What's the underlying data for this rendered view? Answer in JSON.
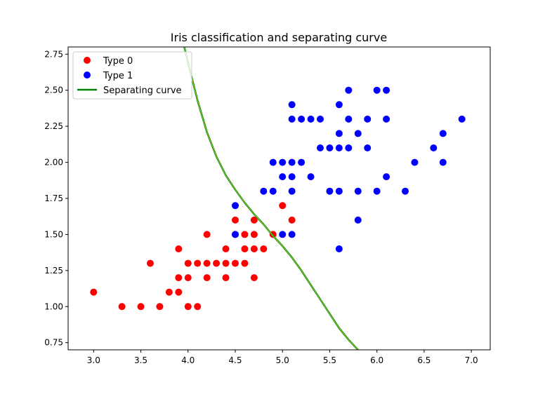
{
  "chart_data": {
    "type": "scatter",
    "title": "Iris classification and separating curve",
    "xlabel": "",
    "ylabel": "",
    "xlim": [
      2.73,
      7.2
    ],
    "ylim": [
      0.7,
      2.8
    ],
    "xticks": [
      "3.0",
      "3.5",
      "4.0",
      "4.5",
      "5.0",
      "5.5",
      "6.0",
      "6.5",
      "7.0"
    ],
    "yticks": [
      "0.75",
      "1.00",
      "1.25",
      "1.50",
      "1.75",
      "2.00",
      "2.25",
      "2.50",
      "2.75"
    ],
    "legend_position": "top-left",
    "series": [
      {
        "name": "Type 0",
        "kind": "scatter",
        "color": "#ff0000",
        "points": [
          [
            3.0,
            1.1
          ],
          [
            3.3,
            1.0
          ],
          [
            3.5,
            1.0
          ],
          [
            3.6,
            1.3
          ],
          [
            3.7,
            1.0
          ],
          [
            3.8,
            1.1
          ],
          [
            3.9,
            1.1
          ],
          [
            3.9,
            1.2
          ],
          [
            3.9,
            1.4
          ],
          [
            4.0,
            1.0
          ],
          [
            4.0,
            1.2
          ],
          [
            4.0,
            1.3
          ],
          [
            4.1,
            1.0
          ],
          [
            4.1,
            1.3
          ],
          [
            4.2,
            1.2
          ],
          [
            4.2,
            1.3
          ],
          [
            4.2,
            1.5
          ],
          [
            4.3,
            1.3
          ],
          [
            4.4,
            1.2
          ],
          [
            4.4,
            1.3
          ],
          [
            4.4,
            1.4
          ],
          [
            4.5,
            1.3
          ],
          [
            4.5,
            1.5
          ],
          [
            4.5,
            1.6
          ],
          [
            4.6,
            1.3
          ],
          [
            4.6,
            1.4
          ],
          [
            4.6,
            1.5
          ],
          [
            4.7,
            1.2
          ],
          [
            4.7,
            1.4
          ],
          [
            4.7,
            1.5
          ],
          [
            4.7,
            1.6
          ],
          [
            4.8,
            1.4
          ],
          [
            4.9,
            1.5
          ],
          [
            5.0,
            1.7
          ],
          [
            5.1,
            1.6
          ]
        ]
      },
      {
        "name": "Type 1",
        "kind": "scatter",
        "color": "#0000ff",
        "points": [
          [
            4.5,
            1.7
          ],
          [
            4.5,
            1.5
          ],
          [
            4.8,
            1.8
          ],
          [
            4.9,
            1.8
          ],
          [
            4.9,
            2.0
          ],
          [
            5.0,
            1.5
          ],
          [
            5.0,
            1.9
          ],
          [
            5.0,
            2.0
          ],
          [
            5.1,
            1.5
          ],
          [
            5.1,
            1.8
          ],
          [
            5.1,
            1.9
          ],
          [
            5.1,
            2.0
          ],
          [
            5.1,
            2.3
          ],
          [
            5.1,
            2.4
          ],
          [
            5.2,
            2.0
          ],
          [
            5.2,
            2.3
          ],
          [
            5.3,
            1.9
          ],
          [
            5.3,
            2.3
          ],
          [
            5.4,
            2.1
          ],
          [
            5.4,
            2.3
          ],
          [
            5.5,
            1.8
          ],
          [
            5.5,
            2.1
          ],
          [
            5.6,
            1.4
          ],
          [
            5.6,
            1.8
          ],
          [
            5.6,
            2.1
          ],
          [
            5.6,
            2.2
          ],
          [
            5.6,
            2.4
          ],
          [
            5.7,
            2.1
          ],
          [
            5.7,
            2.3
          ],
          [
            5.7,
            2.5
          ],
          [
            5.8,
            1.6
          ],
          [
            5.8,
            1.8
          ],
          [
            5.8,
            2.2
          ],
          [
            5.9,
            2.1
          ],
          [
            5.9,
            2.3
          ],
          [
            6.0,
            1.8
          ],
          [
            6.0,
            2.5
          ],
          [
            6.1,
            1.9
          ],
          [
            6.1,
            2.3
          ],
          [
            6.1,
            2.5
          ],
          [
            6.3,
            1.8
          ],
          [
            6.4,
            2.0
          ],
          [
            6.6,
            2.1
          ],
          [
            6.7,
            2.0
          ],
          [
            6.7,
            2.2
          ],
          [
            6.9,
            2.3
          ]
        ]
      },
      {
        "name": "Separating curve",
        "kind": "line",
        "color": "#008000",
        "highlight_color": "#9acd32",
        "points": [
          [
            3.96,
            2.8
          ],
          [
            4.0,
            2.69
          ],
          [
            4.1,
            2.43
          ],
          [
            4.2,
            2.21
          ],
          [
            4.3,
            2.04
          ],
          [
            4.4,
            1.91
          ],
          [
            4.5,
            1.81
          ],
          [
            4.6,
            1.72
          ],
          [
            4.7,
            1.64
          ],
          [
            4.8,
            1.57
          ],
          [
            4.9,
            1.49
          ],
          [
            5.0,
            1.42
          ],
          [
            5.1,
            1.34
          ],
          [
            5.2,
            1.25
          ],
          [
            5.3,
            1.15
          ],
          [
            5.4,
            1.05
          ],
          [
            5.5,
            0.95
          ],
          [
            5.6,
            0.85
          ],
          [
            5.7,
            0.77
          ],
          [
            5.8,
            0.7
          ]
        ]
      }
    ]
  }
}
